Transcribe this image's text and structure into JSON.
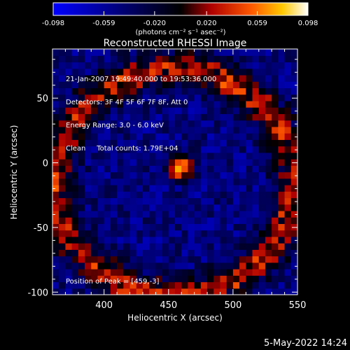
{
  "chart_data": {
    "type": "heatmap",
    "title": "Reconstructed RHESSI Image",
    "xlabel": "Heliocentric X (arcsec)",
    "ylabel": "Heliocentric Y (arcsec)",
    "xlim": [
      360,
      550
    ],
    "ylim": [
      -102,
      88
    ],
    "x_ticks": [
      400,
      450,
      500,
      550
    ],
    "y_ticks": [
      -100,
      -50,
      0,
      50
    ],
    "colorbar": {
      "range": [
        -0.098,
        0.098
      ],
      "ticks": [
        "-0.098",
        "-0.059",
        "-0.020",
        "0.020",
        "0.059",
        "0.098"
      ],
      "unit_label": "(photons cm⁻² s⁻¹ asec⁻²)"
    },
    "info_lines": [
      "21-Jan-2007 19:49:40.000 to 19:53:36.000",
      "Detectors: 3F 4F 5F 6F 7F 8F, Att 0",
      "Energy Range: 3.0 - 6.0 keV",
      "Clean     Total counts: 1.79E+04"
    ],
    "peak_label": "Position of Peak = [459,-3]",
    "peak": {
      "x": 459,
      "y": -3,
      "value": 0.098
    },
    "ring": {
      "center_x": 455,
      "center_y": -15,
      "radius": 92,
      "value": 0.05
    },
    "background_value": -0.05
  },
  "timestamp": "5-May-2022 14:24"
}
